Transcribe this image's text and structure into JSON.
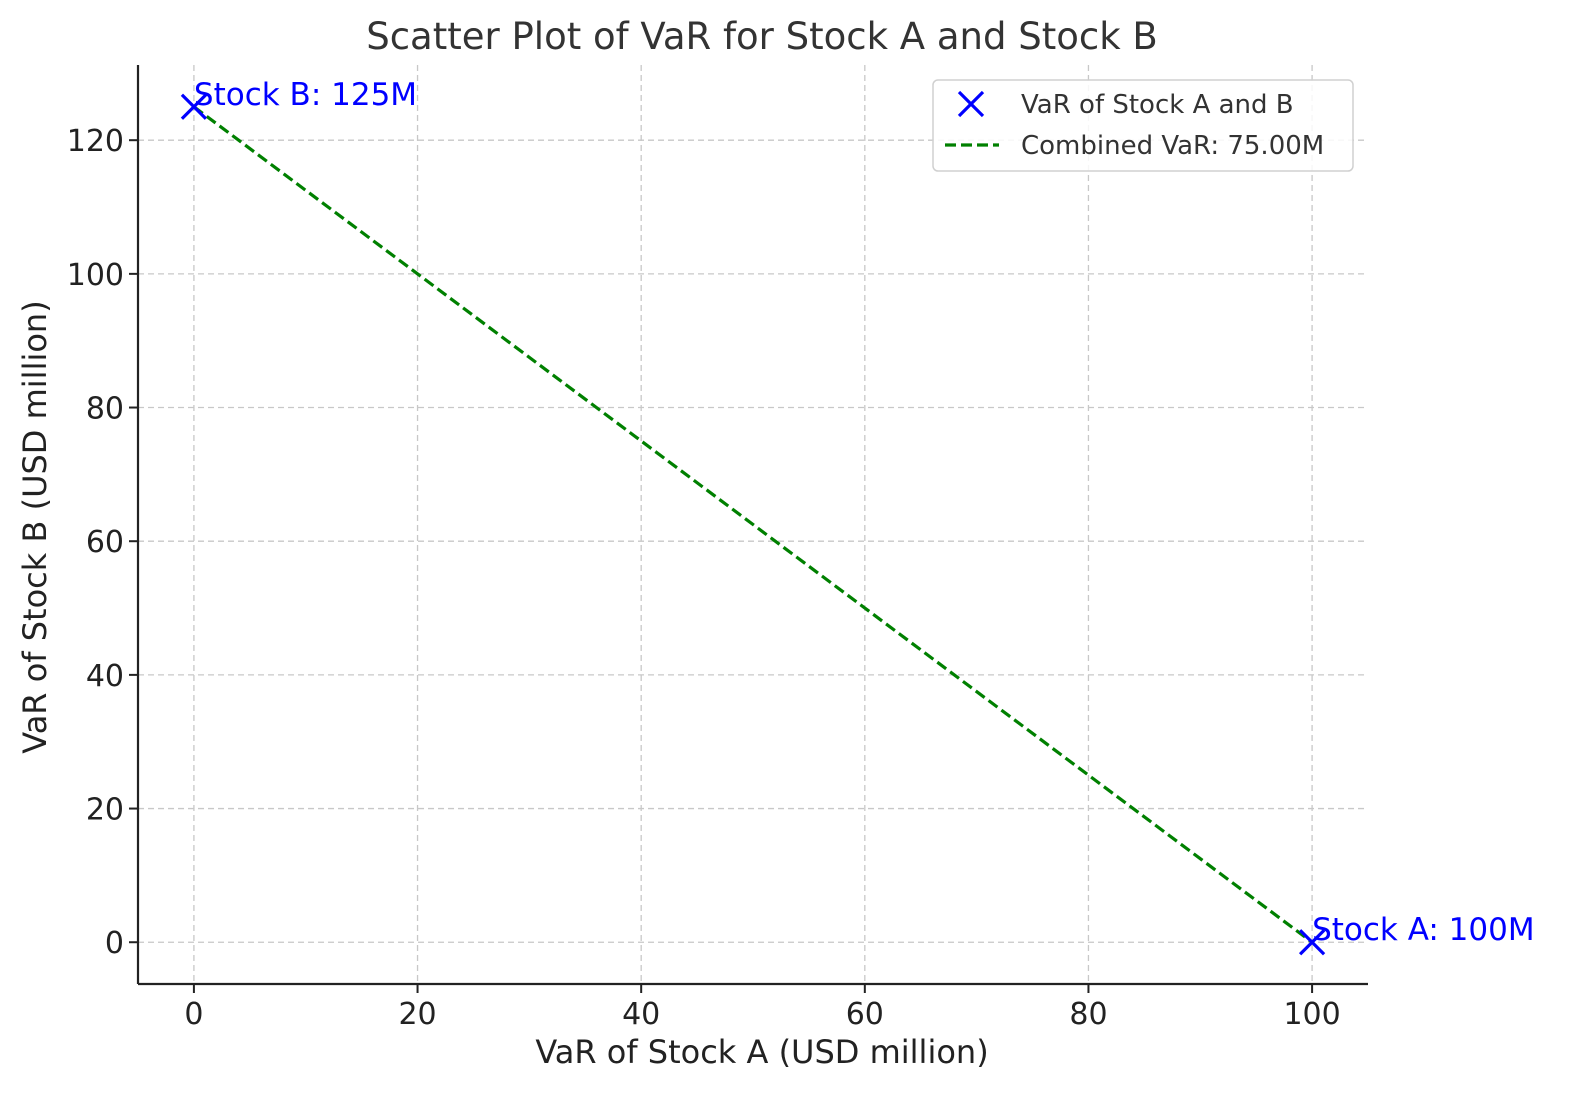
{
  "chart_data": {
    "type": "scatter",
    "title": "Scatter Plot of VaR for Stock A and Stock B",
    "xlabel": "VaR of Stock A (USD million)",
    "ylabel": "VaR of Stock B (USD million)",
    "xlim": [
      -5,
      105
    ],
    "ylim": [
      -6.25,
      131.25
    ],
    "xticks": [
      0,
      20,
      40,
      60,
      80,
      100
    ],
    "yticks": [
      0,
      20,
      40,
      60,
      80,
      100,
      120
    ],
    "grid": true,
    "legend_position": "top-right",
    "series": [
      {
        "name": "VaR of Stock A and B",
        "kind": "scatter",
        "marker": "x",
        "color": "#0000ff",
        "points": [
          {
            "x": 100,
            "y": 0
          },
          {
            "x": 0,
            "y": 125
          }
        ]
      },
      {
        "name": "Combined VaR: 75.00M",
        "kind": "line",
        "style": "dashed",
        "color": "#008000",
        "points": [
          {
            "x": 0,
            "y": 125
          },
          {
            "x": 100,
            "y": 0
          }
        ]
      }
    ],
    "annotations": [
      {
        "text": "Stock A: 100M",
        "x": 100,
        "y": 0,
        "color": "#0000ff"
      },
      {
        "text": "Stock B: 125M",
        "x": 0,
        "y": 125,
        "color": "#0000ff"
      }
    ]
  }
}
